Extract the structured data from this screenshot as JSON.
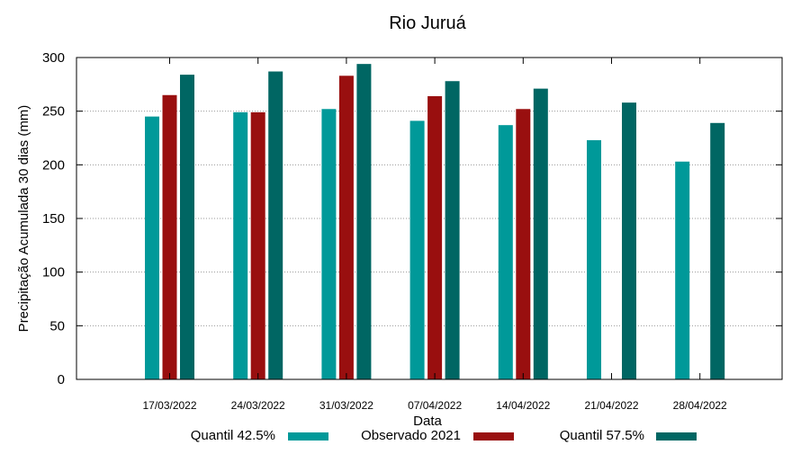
{
  "chart_data": {
    "type": "bar",
    "title": "Rio Juruá",
    "xlabel": "Data",
    "ylabel": "Precipitação Acumulada 30 dias (mm)",
    "ylim": [
      0,
      300
    ],
    "yticks": [
      0,
      50,
      100,
      150,
      200,
      250,
      300
    ],
    "grid": true,
    "legend_position": "bottom",
    "categories": [
      "17/03/2022",
      "24/03/2022",
      "31/03/2022",
      "07/04/2022",
      "14/04/2022",
      "21/04/2022",
      "28/04/2022"
    ],
    "series": [
      {
        "name": "Quantil 42.5%",
        "color": "#009999",
        "values": [
          245,
          249,
          252,
          241,
          237,
          223,
          203
        ]
      },
      {
        "name": "Observado 2021",
        "color": "#990f0f",
        "values": [
          265,
          249,
          283,
          264,
          252,
          null,
          null
        ]
      },
      {
        "name": "Quantil 57.5%",
        "color": "#006663",
        "values": [
          284,
          287,
          294,
          278,
          271,
          258,
          239
        ]
      }
    ]
  }
}
